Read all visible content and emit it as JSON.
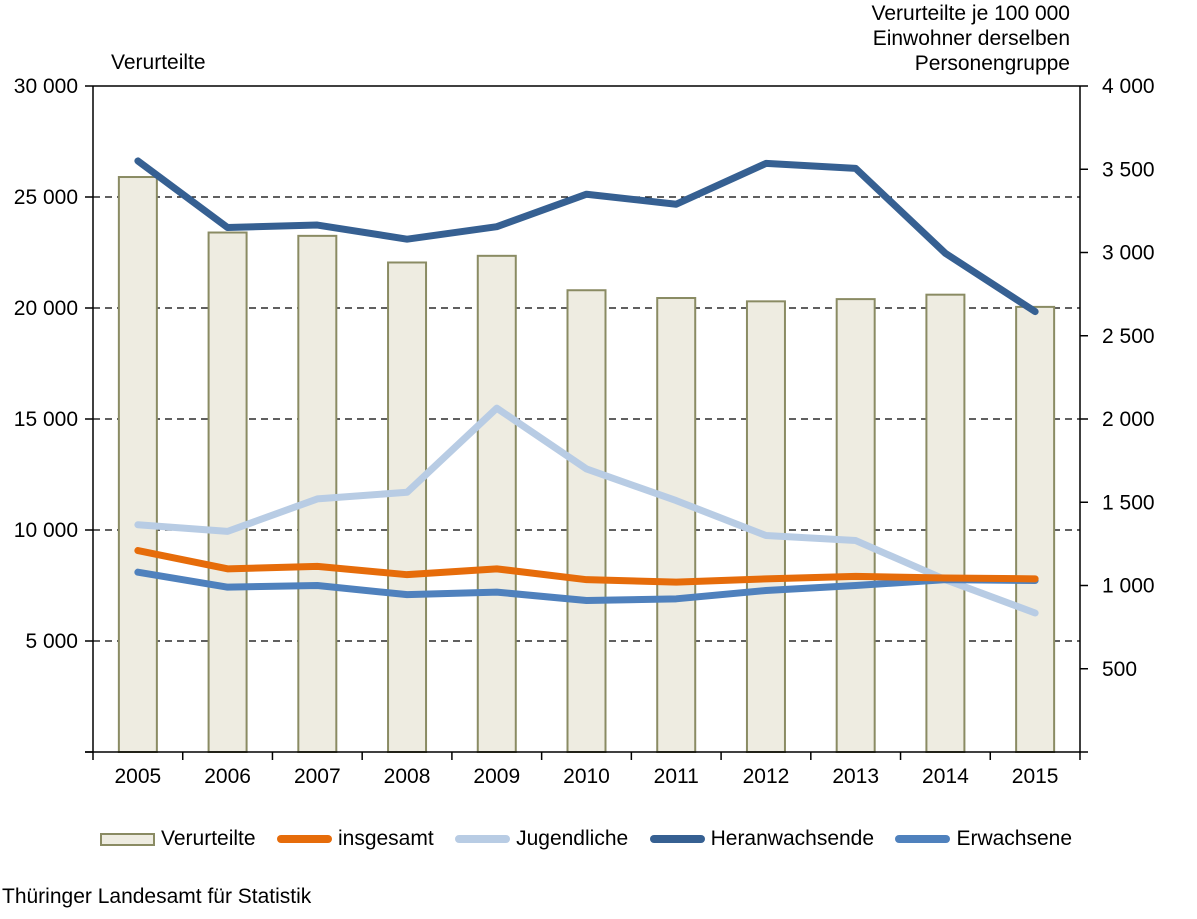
{
  "titles": {
    "left_axis_title": "Verurteilte",
    "right_axis_title_line1": "Verurteilte je 100 000",
    "right_axis_title_line2": "Einwohner derselben",
    "right_axis_title_line3": "Personengruppe"
  },
  "footer": {
    "source": "Thüringer Landesamt für Statistik"
  },
  "legend": {
    "items": [
      {
        "label": "Verurteilte",
        "type": "bar",
        "color": "#EEECE1",
        "border": "#8A8B63"
      },
      {
        "label": "insgesamt",
        "type": "line",
        "color": "#E66C0A"
      },
      {
        "label": "Jugendliche",
        "type": "line",
        "color": "#B8CCE4"
      },
      {
        "label": "Heranwachsende",
        "type": "line",
        "color": "#366092"
      },
      {
        "label": "Erwachsene",
        "type": "line",
        "color": "#4F81BD"
      }
    ]
  },
  "chart_data": {
    "type": "bar+line",
    "categories": [
      "2005",
      "2006",
      "2007",
      "2008",
      "2009",
      "2010",
      "2011",
      "2012",
      "2013",
      "2014",
      "2015"
    ],
    "left_axis": {
      "title": "Verurteilte",
      "min": 0,
      "max": 30000,
      "ticks": [
        {
          "value": 30000,
          "label": "30 000"
        },
        {
          "value": 25000,
          "label": "25 000"
        },
        {
          "value": 20000,
          "label": "20 000"
        },
        {
          "value": 15000,
          "label": "15 000"
        },
        {
          "value": 10000,
          "label": "10 000"
        },
        {
          "value": 5000,
          "label": "5 000"
        },
        {
          "value": 0,
          "label": ""
        }
      ],
      "gridline_values": [
        25000,
        20000,
        15000,
        10000,
        5000
      ]
    },
    "right_axis": {
      "title": "Verurteilte je 100 000 Einwohner derselben Personengruppe",
      "min": 0,
      "max": 4000,
      "ticks": [
        {
          "value": 4000,
          "label": "4 000"
        },
        {
          "value": 3500,
          "label": "3 500"
        },
        {
          "value": 3000,
          "label": "3 000"
        },
        {
          "value": 2500,
          "label": "2 500"
        },
        {
          "value": 2000,
          "label": "2 000"
        },
        {
          "value": 1500,
          "label": "1 500"
        },
        {
          "value": 1000,
          "label": "1 000"
        },
        {
          "value": 500,
          "label": "500"
        },
        {
          "value": 0,
          "label": ""
        }
      ]
    },
    "bar_series": {
      "name": "Verurteilte",
      "axis": "left",
      "fill": "#EEECE1",
      "stroke": "#8A8B63",
      "values": [
        25900,
        23400,
        23250,
        22050,
        22350,
        20800,
        20450,
        20300,
        20400,
        20600,
        20050
      ]
    },
    "line_series": [
      {
        "name": "insgesamt",
        "axis": "right",
        "color": "#E66C0A",
        "values": [
          1210,
          1100,
          1115,
          1065,
          1100,
          1035,
          1020,
          1040,
          1055,
          1045,
          1040
        ]
      },
      {
        "name": "Jugendliche",
        "axis": "right",
        "color": "#B8CCE4",
        "values": [
          1365,
          1325,
          1520,
          1560,
          2065,
          1700,
          1510,
          1300,
          1270,
          1035,
          835
        ]
      },
      {
        "name": "Heranwachsende",
        "axis": "right",
        "color": "#366092",
        "values": [
          3550,
          3150,
          3165,
          3080,
          3155,
          3350,
          3290,
          3535,
          3505,
          2995,
          2645
        ]
      },
      {
        "name": "Erwachsene",
        "axis": "right",
        "color": "#4F81BD",
        "values": [
          1080,
          990,
          1000,
          945,
          960,
          910,
          920,
          970,
          1000,
          1035,
          1030
        ]
      }
    ],
    "draw_order": [
      1,
      3,
      0,
      2
    ],
    "grid": "horizontal-dashed",
    "legend_position": "bottom"
  }
}
